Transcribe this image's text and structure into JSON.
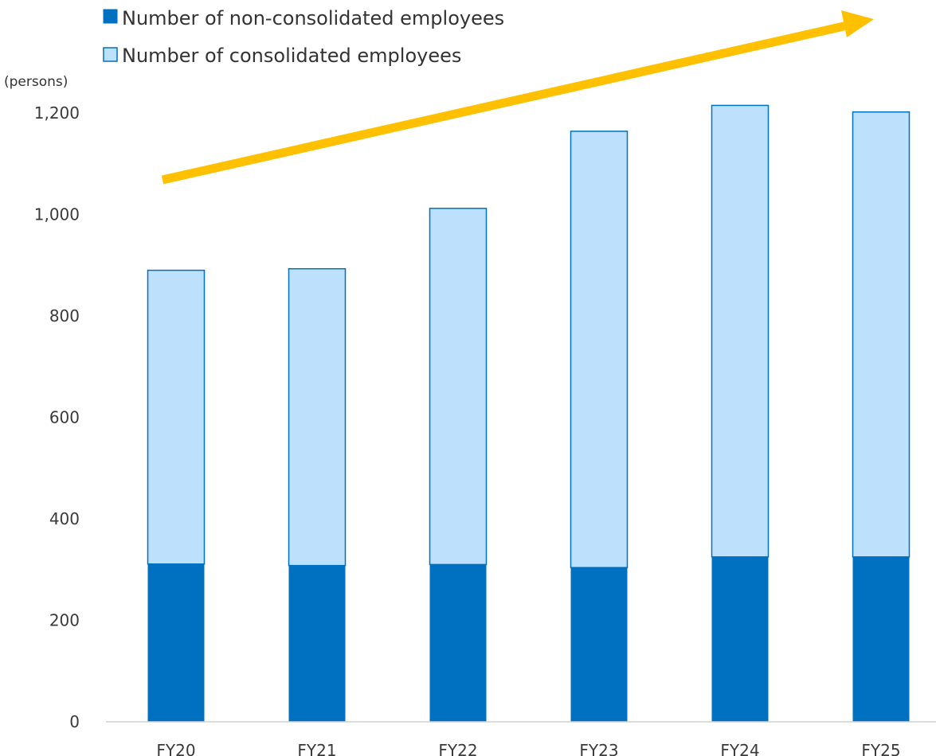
{
  "chart_data": {
    "type": "bar",
    "stacked": true,
    "categories": [
      "FY20",
      "FY21",
      "FY22",
      "FY23",
      "FY24",
      "FY25"
    ],
    "series": [
      {
        "name": "Number of non-consolidated employees",
        "values": [
          311,
          308,
          310,
          304,
          325,
          325
        ],
        "color": "#0070c0"
      },
      {
        "name": "Number of consolidated employees",
        "values": [
          579,
          585,
          702,
          860,
          890,
          877
        ],
        "color": "#bde1fc"
      }
    ],
    "totals": [
      890,
      893,
      1012,
      1164,
      1215,
      1202
    ],
    "ylabel": "(persons)",
    "ylim": [
      0,
      1200
    ],
    "yticks": [
      0,
      200,
      400,
      600,
      800,
      1000,
      1200
    ],
    "ytick_labels": [
      "0",
      "200",
      "400",
      "600",
      "800",
      "1,000",
      "1,200"
    ],
    "grid": false,
    "legend_position": "top-left",
    "annotation": {
      "type": "trend-arrow",
      "color": "#ffc000",
      "direction": "up-right"
    },
    "bar_outline_color": "#0070c0"
  }
}
